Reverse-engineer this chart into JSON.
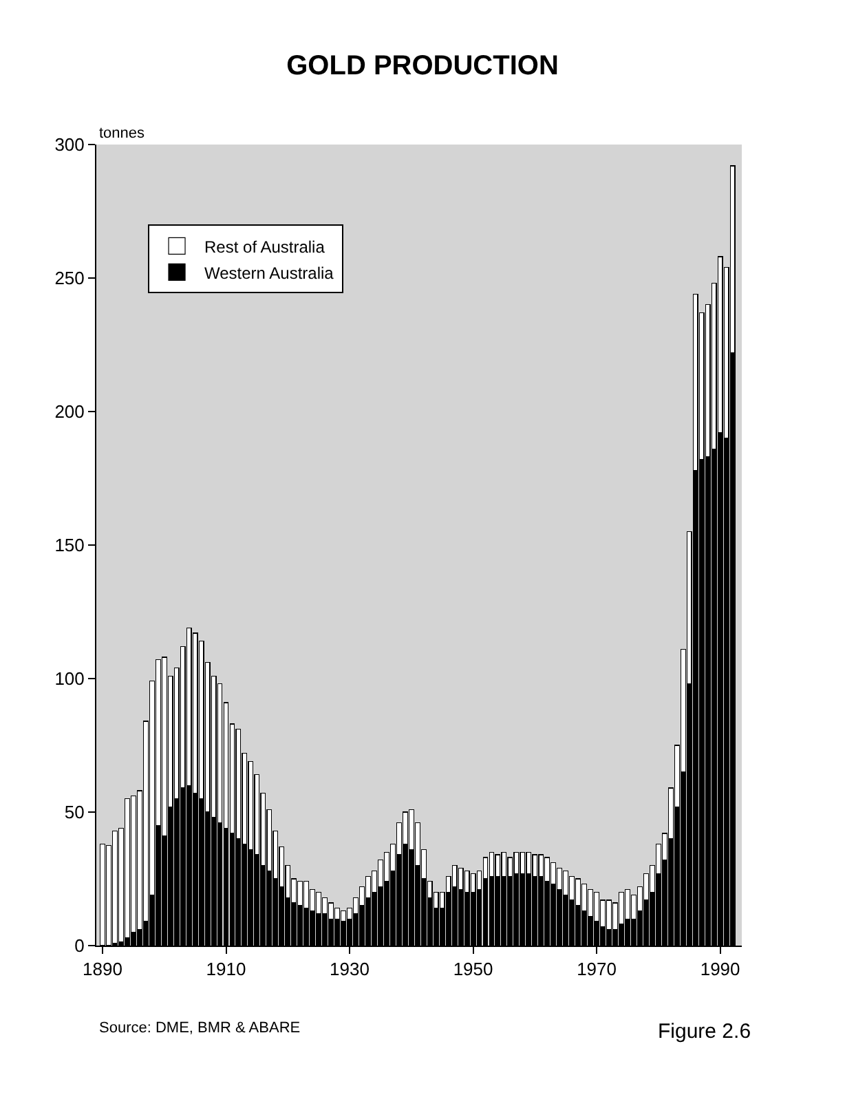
{
  "chart_data": {
    "type": "bar",
    "title": "GOLD PRODUCTION",
    "ylabel": "tonnes",
    "stacked": true,
    "legend": "top left",
    "grid": false,
    "x": [
      1890,
      1891,
      1892,
      1893,
      1894,
      1895,
      1896,
      1897,
      1898,
      1899,
      1900,
      1901,
      1902,
      1903,
      1904,
      1905,
      1906,
      1907,
      1908,
      1909,
      1910,
      1911,
      1912,
      1913,
      1914,
      1915,
      1916,
      1917,
      1918,
      1919,
      1920,
      1921,
      1922,
      1923,
      1924,
      1925,
      1926,
      1927,
      1928,
      1929,
      1930,
      1931,
      1932,
      1933,
      1934,
      1935,
      1936,
      1937,
      1938,
      1939,
      1940,
      1941,
      1942,
      1943,
      1944,
      1945,
      1946,
      1947,
      1948,
      1949,
      1950,
      1951,
      1952,
      1953,
      1954,
      1955,
      1956,
      1957,
      1958,
      1959,
      1960,
      1961,
      1962,
      1963,
      1964,
      1965,
      1966,
      1967,
      1968,
      1969,
      1970,
      1971,
      1972,
      1973,
      1974,
      1975,
      1976,
      1977,
      1978,
      1979,
      1980,
      1981,
      1982,
      1983,
      1984,
      1985,
      1986,
      1987,
      1988,
      1989,
      1990,
      1991,
      1992
    ],
    "series": [
      {
        "name": "Western Australia",
        "color": "#000000",
        "values": [
          0,
          null,
          1,
          1.5,
          3,
          5,
          6,
          9,
          19,
          45,
          41,
          52,
          55,
          59,
          60,
          57,
          55,
          50,
          48,
          46,
          44,
          42,
          40,
          38,
          36,
          34,
          30,
          28,
          25,
          22,
          18,
          16,
          15,
          14,
          13,
          12,
          12,
          10,
          10,
          9,
          10,
          12,
          15,
          18,
          20,
          22,
          24,
          28,
          34,
          38,
          36,
          30,
          25,
          18,
          14,
          14,
          20,
          22,
          21,
          20,
          20,
          21,
          25,
          26,
          26,
          26,
          26,
          27,
          27,
          27,
          26,
          26,
          24,
          23,
          21,
          19,
          17,
          15,
          13,
          11,
          9,
          7,
          6,
          6,
          8,
          10,
          10,
          13,
          17,
          20,
          27,
          32,
          40,
          52,
          65,
          98,
          178,
          182,
          183,
          186,
          192,
          190,
          222
        ]
      },
      {
        "name": "Rest of Australia",
        "color": "#ffffff",
        "values": [
          38,
          37.5,
          42,
          42.5,
          52,
          51,
          52,
          75,
          80,
          62,
          67,
          49,
          49,
          53,
          59,
          60,
          59,
          56,
          53,
          52,
          47,
          41,
          41,
          34,
          33,
          30,
          27,
          23,
          18,
          15,
          12,
          9,
          9,
          10,
          8,
          8,
          6,
          6,
          4,
          4,
          4,
          6,
          7,
          8,
          8,
          10,
          11,
          10,
          12,
          12,
          15,
          16,
          11,
          6,
          6,
          6,
          6,
          8,
          8,
          8,
          7,
          7,
          8,
          9,
          8,
          9,
          7,
          8,
          8,
          8,
          8,
          8,
          9,
          8,
          8,
          9,
          9,
          10,
          10,
          10,
          11,
          10,
          11,
          10,
          12,
          11,
          9,
          9,
          10,
          10,
          11,
          10,
          19,
          23,
          46,
          57,
          66,
          55,
          57,
          62,
          66,
          64,
          70
        ]
      }
    ],
    "xlim": [
      1889,
      1993.5
    ],
    "xticks": [
      1890,
      1910,
      1930,
      1950,
      1970,
      1990
    ],
    "ylim": [
      0,
      300
    ],
    "yticks": [
      0,
      50,
      100,
      150,
      200,
      250,
      300
    ],
    "annotations": [
      "Source: DME, BMR & ABARE",
      "Figure 2.6"
    ]
  }
}
